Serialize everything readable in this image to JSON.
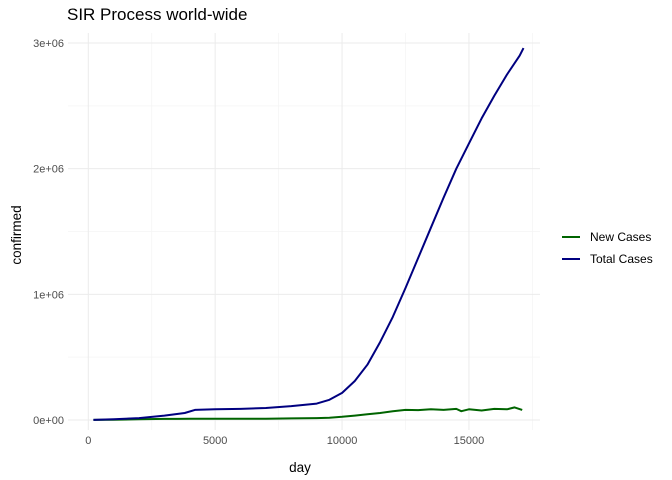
{
  "chart_data": {
    "type": "line",
    "title": "SIR Process world-wide",
    "xlabel": "day",
    "ylabel": "confirmed",
    "xlim": [
      -800,
      17800
    ],
    "ylim": [
      -80000,
      3080000
    ],
    "x_ticks": [
      0,
      5000,
      10000,
      15000
    ],
    "x_tick_labels": [
      "0",
      "5000",
      "10000",
      "15000"
    ],
    "y_ticks": [
      0,
      1000000,
      2000000,
      3000000
    ],
    "y_tick_labels": [
      "0e+00",
      "1e+06",
      "2e+06",
      "3e+06"
    ],
    "grid": true,
    "legend_position": "right",
    "series": [
      {
        "name": "New Cases",
        "color": "#006400",
        "x": [
          200,
          1000,
          2000,
          3000,
          3500,
          4000,
          5000,
          6000,
          7000,
          8000,
          9000,
          9500,
          10000,
          10500,
          11000,
          11500,
          12000,
          12500,
          13000,
          13500,
          14000,
          14500,
          14700,
          15000,
          15500,
          16000,
          16500,
          16800,
          17100
        ],
        "y": [
          0,
          2000,
          5000,
          8000,
          8000,
          10000,
          10000,
          10000,
          10000,
          12000,
          15000,
          18000,
          25000,
          35000,
          45000,
          55000,
          70000,
          80000,
          78000,
          85000,
          80000,
          88000,
          70000,
          85000,
          75000,
          88000,
          85000,
          100000,
          80000
        ]
      },
      {
        "name": "Total Cases",
        "color": "#000080",
        "x": [
          200,
          1000,
          2000,
          3000,
          3800,
          4200,
          5000,
          6000,
          7000,
          8000,
          9000,
          9500,
          10000,
          10500,
          11000,
          11500,
          12000,
          12500,
          13000,
          13500,
          14000,
          14500,
          15000,
          15500,
          16000,
          16500,
          17000,
          17150
        ],
        "y": [
          0,
          5000,
          15000,
          35000,
          55000,
          80000,
          85000,
          88000,
          95000,
          110000,
          130000,
          160000,
          215000,
          310000,
          440000,
          620000,
          820000,
          1050000,
          1290000,
          1530000,
          1770000,
          2000000,
          2200000,
          2400000,
          2580000,
          2750000,
          2900000,
          2960000
        ]
      }
    ]
  }
}
